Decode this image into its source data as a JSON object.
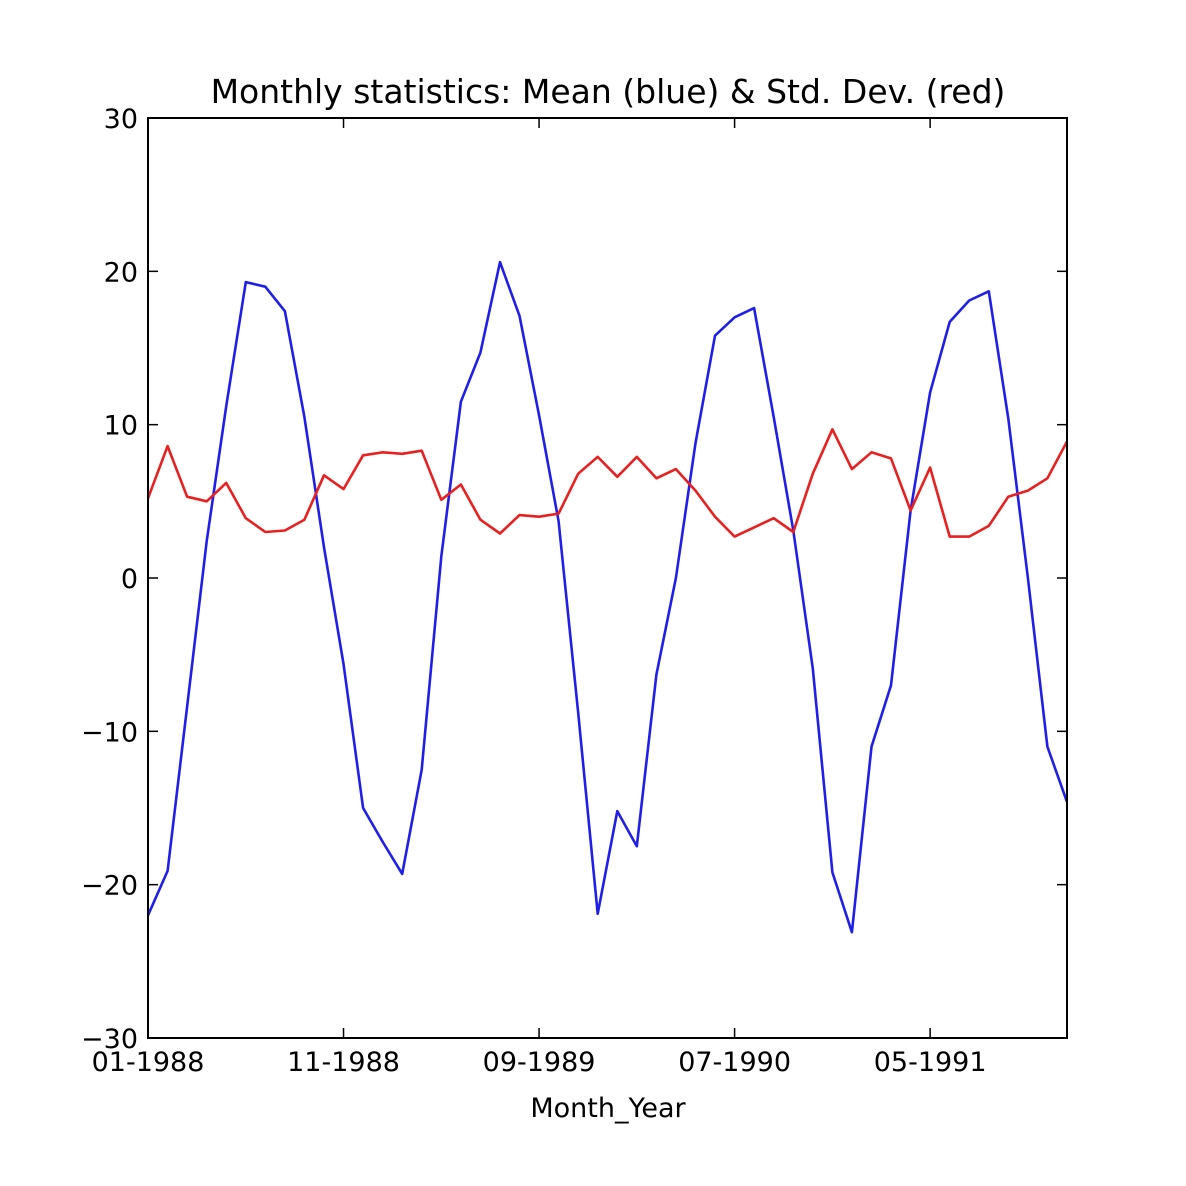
{
  "chart_data": {
    "type": "line",
    "title": "Monthly statistics: Mean (blue) & Std. Dev. (red)",
    "xlabel": "Month_Year",
    "ylabel": "",
    "ylim": [
      -30,
      30
    ],
    "yticks": [
      "30",
      "20",
      "10",
      "0",
      "−10",
      "−20",
      "−30"
    ],
    "yticks_values": [
      30,
      20,
      10,
      0,
      -10,
      -20,
      -30
    ],
    "x": [
      "01-1988",
      "02-1988",
      "03-1988",
      "04-1988",
      "05-1988",
      "06-1988",
      "07-1988",
      "08-1988",
      "09-1988",
      "10-1988",
      "11-1988",
      "12-1988",
      "01-1989",
      "02-1989",
      "03-1989",
      "04-1989",
      "05-1989",
      "06-1989",
      "07-1989",
      "08-1989",
      "09-1989",
      "10-1989",
      "11-1989",
      "12-1989",
      "01-1990",
      "02-1990",
      "03-1990",
      "04-1990",
      "05-1990",
      "06-1990",
      "07-1990",
      "08-1990",
      "09-1990",
      "10-1990",
      "11-1990",
      "12-1990",
      "01-1991",
      "02-1991",
      "03-1991",
      "04-1991",
      "05-1991",
      "06-1991",
      "07-1991",
      "08-1991",
      "09-1991",
      "10-1991",
      "11-1991",
      "12-1991"
    ],
    "xticks": [
      "01-1988",
      "11-1988",
      "09-1989",
      "07-1990",
      "05-1991"
    ],
    "grid": false,
    "legend": "none",
    "series": [
      {
        "color": "#1f1fe8",
        "values": [
          -22.0,
          -19.1,
          -8.4,
          2.4,
          11.2,
          19.3,
          19.0,
          17.4,
          10.5,
          2.0,
          -5.6,
          -15.0,
          -17.2,
          -19.3,
          -12.5,
          1.4,
          11.5,
          14.7,
          20.6,
          17.1,
          10.6,
          3.7,
          -8.8,
          -21.9,
          -15.2,
          -17.5,
          -6.3,
          0.0,
          8.8,
          15.8,
          17.0,
          17.6,
          10.5,
          3.1,
          -5.9,
          -19.2,
          -23.1,
          -11.0,
          -7.0,
          4.4,
          12.1,
          16.7,
          18.1,
          18.7,
          10.4,
          0.0,
          -11.0,
          -14.6
        ]
      },
      {
        "color": "#e82020",
        "values": [
          5.2,
          8.6,
          5.3,
          5.0,
          6.2,
          3.9,
          3.0,
          3.1,
          3.8,
          6.7,
          5.8,
          8.0,
          8.2,
          8.1,
          8.3,
          5.1,
          6.1,
          3.8,
          2.9,
          4.1,
          4.0,
          4.2,
          6.8,
          7.9,
          6.6,
          7.9,
          6.5,
          7.1,
          5.7,
          4.0,
          2.7,
          3.3,
          3.9,
          3.0,
          6.8,
          9.7,
          7.1,
          8.2,
          7.8,
          4.4,
          7.2,
          2.7,
          2.7,
          3.4,
          5.3,
          5.7,
          6.5,
          8.9
        ]
      }
    ]
  }
}
